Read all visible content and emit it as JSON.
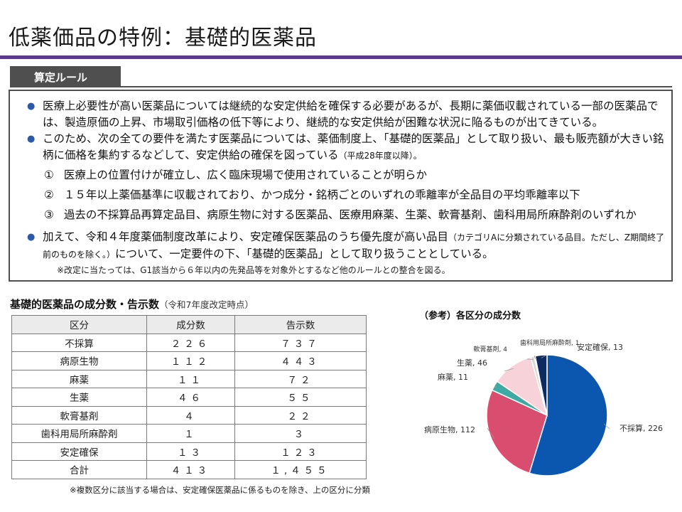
{
  "title": "低薬価品の特例：基礎的医薬品",
  "rule_box": {
    "tag": "算定ルール",
    "bullets": [
      {
        "text": "医療上必要性が高い医薬品については継続的な安定供給を確保する必要があるが、長期に薬価収載されている一部の医薬品では、製造原価の上昇、市場取引価格の低下等により、継続的な安定供給が困難な状況に陥るものが出てきている。",
        "small": ""
      },
      {
        "text": "このため、次の全ての要件を満たす医薬品については、薬価制度上、「基礎的医薬品」として取り扱い、最も販売額が大きい銘柄に価格を集約するなどして、安定供給の確保を図っている",
        "small": "（平成28年度以降）。"
      }
    ],
    "conditions": [
      {
        "mark": "①",
        "text": "医療上の位置付けが確立し、広く臨床現場で使用されていることが明らか"
      },
      {
        "mark": "②",
        "text": "１５年以上薬価基準に収載されており、かつ成分・銘柄ごとのいずれの乖離率が全品目の平均乖離率以下"
      },
      {
        "mark": "③",
        "text": "過去の不採算品再算定品目、病原生物に対する医薬品、医療用麻薬、生薬、軟膏基剤、歯科用局所麻酔剤のいずれか"
      }
    ],
    "bullet3_text": "加えて、令和４年度薬価制度改革により、安定確保医薬品のうち優先度が高い品目",
    "bullet3_small": "（カテゴリAに分類されている品目。ただし、Z期間終了前のものを除く。）",
    "bullet3_tail": "について、一定要件の下、「基礎的医薬品」として取り扱うこととしている。",
    "note": "※改定に当たっては、G1該当から６年以内の先発品等を対象外とするなど他のルールとの整合を図る。"
  },
  "table": {
    "title": "基礎的医薬品の成分数・告示数",
    "subtitle": "（令和7年度改定時点）",
    "headers": [
      "区分",
      "成分数",
      "告示数"
    ],
    "rows": [
      [
        "不採算",
        "２２６",
        "７３７"
      ],
      [
        "病原生物",
        "１１２",
        "４４３"
      ],
      [
        "麻薬",
        "１１",
        "７２"
      ],
      [
        "生薬",
        "４６",
        "５５"
      ],
      [
        "軟膏基剤",
        "４",
        "２２"
      ],
      [
        "歯科用局所麻酔剤",
        "１",
        "３"
      ],
      [
        "安定確保",
        "１３",
        "１２３"
      ],
      [
        "合計",
        "４１３",
        "１,４５５"
      ]
    ],
    "note": "※複数区分に該当する場合は、安定確保医薬品に係るものを除き、上の区分に分類"
  },
  "chart_title": "（参考）各区分の成分数",
  "chart_data": {
    "type": "pie",
    "title": "（参考）各区分の成分数",
    "slices": [
      {
        "label": "不採算",
        "value": 226,
        "color": "#0b57b0",
        "display": "不採算, 226"
      },
      {
        "label": "病原生物",
        "value": 112,
        "color": "#d94d6e",
        "display": "病原生物, 112"
      },
      {
        "label": "麻薬",
        "value": 11,
        "color": "#3fa9a3",
        "display": "麻薬, 11"
      },
      {
        "label": "生薬",
        "value": 46,
        "color": "#f7d3d9",
        "display": "生薬, 46"
      },
      {
        "label": "軟膏基剤",
        "value": 4,
        "color": "#d9d9d9",
        "display": "軟膏基剤, 4"
      },
      {
        "label": "歯科用局所麻酔剤",
        "value": 1,
        "color": "#1e3d78",
        "display": "歯科用局所麻酔剤, 1"
      },
      {
        "label": "安定確保",
        "value": 13,
        "color": "#0d2b5e",
        "display": "安定確保, 13"
      }
    ]
  },
  "colors": {
    "accent": "#5b3a8c",
    "tag_bg": "#4f4f4f",
    "bullet": "#2a5aa8"
  }
}
